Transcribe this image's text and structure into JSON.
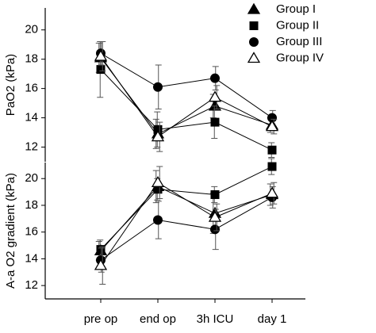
{
  "chart_data": [
    {
      "type": "line",
      "ylabel": "PaO2 (kPa)",
      "ylim": [
        11,
        21.5
      ],
      "yticks": [
        12,
        14,
        16,
        18,
        20
      ],
      "legend": "top-right",
      "series": [
        {
          "name": "Group I",
          "marker": "triangle",
          "color": "#000000",
          "values": [
            18.1,
            12.9,
            14.8,
            13.5
          ],
          "errors": [
            1.0,
            1.0,
            0.8,
            0.5
          ]
        },
        {
          "name": "Group II",
          "marker": "square",
          "color": "#000000",
          "values": [
            17.3,
            13.2,
            13.7,
            11.8
          ],
          "errors": [
            1.9,
            1.2,
            1.1,
            0.5
          ]
        },
        {
          "name": "Group III",
          "marker": "circle",
          "color": "#000000",
          "values": [
            18.4,
            16.1,
            16.7,
            14.0
          ],
          "errors": [
            0.8,
            1.5,
            0.8,
            0.5
          ]
        },
        {
          "name": "Group IV",
          "marker": "open-triangle",
          "color": "#000000",
          "values": [
            18.2,
            12.7,
            15.4,
            13.4
          ],
          "errors": [
            1.0,
            1.0,
            0.8,
            0.5
          ]
        }
      ]
    },
    {
      "type": "line",
      "ylabel": "A-a O2 gradient (kPa)",
      "categories": [
        "pre op",
        "end op",
        "3h ICU",
        "day 1"
      ],
      "ylim": [
        11,
        21.2
      ],
      "yticks": [
        12,
        14,
        16,
        18,
        20
      ],
      "series": [
        {
          "marker": "triangle",
          "color": "#000000",
          "values": [
            14.6,
            19.4,
            17.4,
            18.8
          ],
          "errors": [
            0.7,
            1.2,
            1.5,
            0.8
          ]
        },
        {
          "marker": "square",
          "color": "#000000",
          "values": [
            14.7,
            19.2,
            18.8,
            20.9
          ],
          "errors": [
            0.7,
            0.8,
            0.6,
            0.6
          ]
        },
        {
          "marker": "circle",
          "color": "#000000",
          "values": [
            13.9,
            16.9,
            16.2,
            18.6
          ],
          "errors": [
            0.9,
            1.4,
            1.5,
            0.8
          ]
        },
        {
          "marker": "open-triangle",
          "color": "#000000",
          "values": [
            13.5,
            19.7,
            17.1,
            18.9
          ],
          "errors": [
            1.4,
            1.2,
            1.0,
            0.8
          ]
        }
      ]
    }
  ]
}
